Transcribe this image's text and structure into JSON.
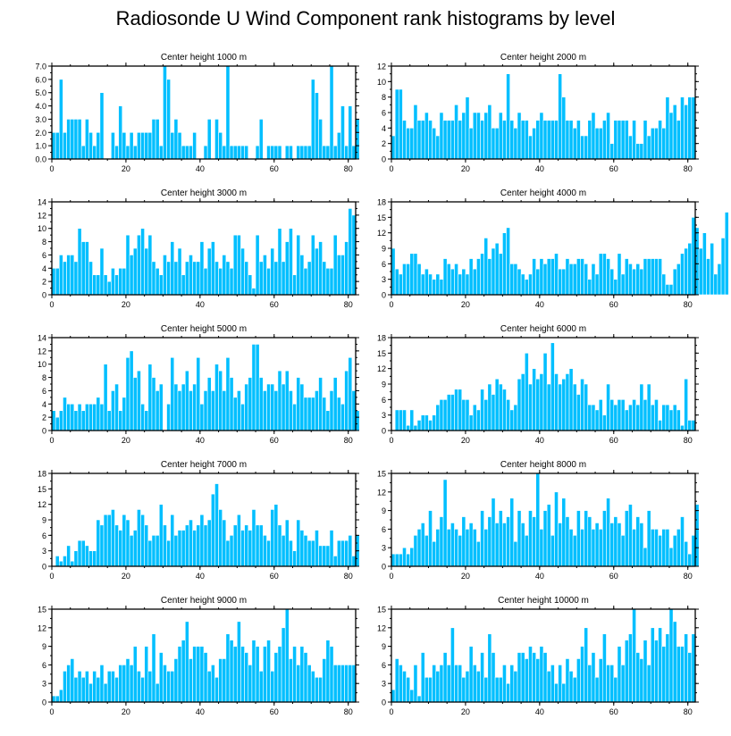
{
  "title": "Radiosonde U Wind Component rank histograms by level",
  "colors": {
    "bar": "#00bfff",
    "bar_edge": "#ffffff",
    "frame": "#000000"
  },
  "chart_data": [
    {
      "type": "bar",
      "title": "Center height 1000 m",
      "xlim": [
        0,
        82
      ],
      "ylim": [
        0,
        7
      ],
      "yticks": [
        0,
        1,
        2,
        3,
        4,
        5,
        6,
        7
      ],
      "ytick_format": 1,
      "xticks": [
        0,
        20,
        40,
        60,
        80
      ],
      "values": [
        2,
        2,
        6,
        2,
        3,
        3,
        3,
        3,
        1,
        3,
        2,
        1,
        2,
        5,
        0,
        0,
        2,
        1,
        4,
        2,
        1,
        2,
        1,
        2,
        2,
        2,
        2,
        3,
        3,
        1,
        7,
        6,
        2,
        3,
        2,
        1,
        1,
        1,
        2,
        0,
        0,
        1,
        3,
        0,
        3,
        2,
        1,
        7,
        1,
        1,
        1,
        1,
        1,
        0,
        0,
        1,
        3,
        0,
        1,
        1,
        1,
        1,
        0,
        1,
        1,
        0,
        1,
        1,
        1,
        1,
        6,
        5,
        3,
        1,
        1,
        7,
        1,
        2,
        4,
        1,
        4,
        1,
        3
      ]
    },
    {
      "type": "bar",
      "title": "Center height 2000 m",
      "xlim": [
        0,
        82
      ],
      "ylim": [
        0,
        12
      ],
      "yticks": [
        0,
        2,
        4,
        6,
        8,
        10,
        12
      ],
      "ytick_format": 0,
      "xticks": [
        0,
        20,
        40,
        60,
        80
      ],
      "values": [
        3,
        9,
        9,
        5,
        4,
        4,
        7,
        5,
        5,
        6,
        5,
        4,
        3,
        6,
        5,
        5,
        5,
        7,
        5,
        6,
        8,
        4,
        6,
        6,
        5,
        6,
        7,
        4,
        4,
        6,
        5,
        11,
        5,
        4,
        6,
        5,
        5,
        3,
        4,
        5,
        6,
        5,
        5,
        5,
        5,
        11,
        8,
        5,
        5,
        4,
        5,
        3,
        3,
        5,
        6,
        4,
        4,
        5,
        6,
        2,
        5,
        5,
        5,
        5,
        3,
        5,
        2,
        2,
        5,
        3,
        4,
        4,
        5,
        4,
        8,
        6,
        7,
        5,
        8,
        7,
        8,
        8
      ]
    },
    {
      "type": "bar",
      "title": "Center height 3000 m",
      "xlim": [
        0,
        82
      ],
      "ylim": [
        0,
        14
      ],
      "yticks": [
        0,
        2,
        4,
        6,
        8,
        10,
        12,
        14
      ],
      "ytick_format": 0,
      "xticks": [
        0,
        20,
        40,
        60,
        80
      ],
      "values": [
        4,
        4,
        6,
        5,
        6,
        6,
        5,
        10,
        8,
        8,
        5,
        3,
        3,
        7,
        3,
        2,
        4,
        3,
        4,
        4,
        9,
        6,
        7,
        9,
        10,
        7,
        9,
        5,
        4,
        3,
        6,
        5,
        8,
        5,
        7,
        3,
        5,
        6,
        5,
        5,
        8,
        4,
        7,
        8,
        5,
        4,
        6,
        5,
        4,
        9,
        9,
        7,
        5,
        3,
        1,
        9,
        5,
        6,
        4,
        7,
        5,
        10,
        5,
        8,
        10,
        3,
        9,
        6,
        4,
        5,
        9,
        7,
        8,
        5,
        4,
        4,
        9,
        6,
        6,
        8,
        13,
        12
      ]
    },
    {
      "type": "bar",
      "title": "Center height 4000 m",
      "xlim": [
        0,
        82
      ],
      "ylim": [
        0,
        18
      ],
      "yticks": [
        0,
        3,
        6,
        9,
        12,
        15,
        18
      ],
      "ytick_format": 0,
      "xticks": [
        0,
        20,
        40,
        60,
        80
      ],
      "values": [
        9,
        5,
        4,
        6,
        6,
        8,
        8,
        6,
        4,
        5,
        4,
        3,
        4,
        3,
        7,
        6,
        5,
        6,
        4,
        5,
        4,
        7,
        5,
        7,
        8,
        11,
        7,
        9,
        10,
        8,
        12,
        13,
        6,
        6,
        5,
        4,
        3,
        4,
        7,
        5,
        7,
        6,
        7,
        7,
        8,
        5,
        5,
        7,
        6,
        6,
        7,
        7,
        6,
        3,
        6,
        4,
        8,
        8,
        7,
        5,
        3,
        8,
        4,
        7,
        6,
        5,
        6,
        5,
        7,
        7,
        7,
        7,
        7,
        4,
        2,
        2,
        5,
        6,
        8,
        9,
        10,
        15,
        13,
        9,
        12,
        7,
        10,
        4,
        6,
        11,
        16
      ]
    },
    {
      "type": "bar",
      "title": "Center height 5000 m",
      "xlim": [
        0,
        82
      ],
      "ylim": [
        0,
        14
      ],
      "yticks": [
        0,
        2,
        4,
        6,
        8,
        10,
        12,
        14
      ],
      "ytick_format": 0,
      "xticks": [
        0,
        20,
        40,
        60,
        80
      ],
      "values": [
        3,
        2,
        3,
        5,
        4,
        4,
        3,
        4,
        3,
        4,
        4,
        4,
        5,
        4,
        10,
        3,
        6,
        7,
        3,
        5,
        11,
        12,
        8,
        9,
        4,
        3,
        10,
        8,
        6,
        7,
        0,
        4,
        11,
        7,
        6,
        7,
        9,
        6,
        7,
        11,
        4,
        6,
        8,
        6,
        10,
        9,
        6,
        11,
        8,
        5,
        6,
        4,
        7,
        8,
        13,
        13,
        8,
        6,
        7,
        7,
        6,
        9,
        7,
        9,
        6,
        4,
        8,
        7,
        5,
        5,
        5,
        6,
        8,
        5,
        3,
        6,
        8,
        5,
        4,
        9,
        11,
        6,
        3
      ]
    },
    {
      "type": "bar",
      "title": "Center height 6000 m",
      "xlim": [
        0,
        82
      ],
      "ylim": [
        0,
        18
      ],
      "yticks": [
        0,
        3,
        6,
        9,
        12,
        15,
        18
      ],
      "ytick_format": 0,
      "xticks": [
        0,
        20,
        40,
        60,
        80
      ],
      "values": [
        0,
        4,
        4,
        4,
        1,
        4,
        1,
        2,
        3,
        3,
        2,
        3,
        5,
        6,
        6,
        7,
        7,
        8,
        8,
        6,
        6,
        3,
        5,
        4,
        8,
        6,
        9,
        7,
        10,
        9,
        8,
        6,
        4,
        5,
        10,
        11,
        15,
        9,
        12,
        10,
        11,
        15,
        9,
        17,
        11,
        9,
        10,
        11,
        12,
        9,
        7,
        10,
        9,
        5,
        5,
        4,
        6,
        3,
        9,
        6,
        5,
        6,
        6,
        4,
        5,
        6,
        5,
        9,
        6,
        9,
        5,
        6,
        2,
        5,
        5,
        4,
        5,
        4,
        1,
        10,
        2,
        2
      ]
    },
    {
      "type": "bar",
      "title": "Center height 7000 m",
      "xlim": [
        0,
        82
      ],
      "ylim": [
        0,
        18
      ],
      "yticks": [
        0,
        3,
        6,
        9,
        12,
        15,
        18
      ],
      "ytick_format": 0,
      "xticks": [
        0,
        20,
        40,
        60,
        80
      ],
      "values": [
        0,
        2,
        1,
        2,
        4,
        1,
        3,
        5,
        5,
        4,
        3,
        3,
        9,
        8,
        10,
        10,
        11,
        8,
        7,
        10,
        9,
        6,
        7,
        11,
        10,
        8,
        5,
        6,
        6,
        12,
        8,
        5,
        10,
        6,
        7,
        7,
        8,
        9,
        7,
        8,
        10,
        8,
        9,
        14,
        16,
        11,
        9,
        5,
        6,
        8,
        10,
        7,
        8,
        7,
        11,
        8,
        8,
        6,
        5,
        11,
        12,
        8,
        6,
        9,
        5,
        3,
        9,
        7,
        6,
        5,
        5,
        7,
        4,
        4,
        4,
        7,
        2,
        5,
        5,
        5,
        6,
        2,
        6
      ]
    },
    {
      "type": "bar",
      "title": "Center height 8000 m",
      "xlim": [
        0,
        82
      ],
      "ylim": [
        0,
        15
      ],
      "yticks": [
        0,
        3,
        6,
        9,
        12,
        15
      ],
      "ytick_format": 0,
      "xticks": [
        0,
        20,
        40,
        60,
        80
      ],
      "values": [
        2,
        2,
        2,
        3,
        2,
        3,
        5,
        6,
        7,
        5,
        9,
        4,
        6,
        8,
        14,
        6,
        7,
        6,
        5,
        8,
        6,
        7,
        6,
        4,
        9,
        6,
        8,
        11,
        7,
        9,
        7,
        8,
        11,
        4,
        9,
        7,
        5,
        9,
        8,
        15,
        6,
        9,
        10,
        5,
        12,
        7,
        11,
        8,
        6,
        5,
        9,
        6,
        9,
        8,
        6,
        7,
        6,
        9,
        11,
        7,
        8,
        7,
        5,
        9,
        10,
        6,
        8,
        7,
        3,
        9,
        6,
        6,
        5,
        6,
        6,
        3,
        5,
        6,
        8,
        4,
        2,
        5,
        10
      ]
    },
    {
      "type": "bar",
      "title": "Center height 9000 m",
      "xlim": [
        0,
        82
      ],
      "ylim": [
        0,
        15
      ],
      "yticks": [
        0,
        3,
        6,
        9,
        12,
        15
      ],
      "ytick_format": 0,
      "xticks": [
        0,
        20,
        40,
        60,
        80
      ],
      "values": [
        1,
        1,
        2,
        5,
        6,
        7,
        4,
        5,
        4,
        5,
        3,
        5,
        4,
        6,
        3,
        5,
        5,
        4,
        6,
        6,
        7,
        6,
        9,
        5,
        4,
        9,
        5,
        11,
        3,
        8,
        6,
        5,
        5,
        7,
        9,
        10,
        13,
        7,
        9,
        9,
        9,
        8,
        5,
        6,
        4,
        7,
        7,
        11,
        10,
        9,
        13,
        9,
        8,
        6,
        10,
        9,
        5,
        9,
        10,
        5,
        8,
        9,
        12,
        15,
        7,
        9,
        6,
        9,
        8,
        6,
        5,
        4,
        4,
        7,
        10,
        9,
        6,
        6,
        6,
        6,
        6,
        6
      ]
    },
    {
      "type": "bar",
      "title": "Center height 10000 m",
      "xlim": [
        0,
        82
      ],
      "ylim": [
        0,
        15
      ],
      "yticks": [
        0,
        3,
        6,
        9,
        12,
        15
      ],
      "ytick_format": 0,
      "xticks": [
        0,
        20,
        40,
        60,
        80
      ],
      "values": [
        2,
        7,
        6,
        5,
        4,
        2,
        6,
        1,
        8,
        4,
        4,
        6,
        5,
        6,
        8,
        6,
        12,
        6,
        6,
        4,
        5,
        9,
        6,
        5,
        8,
        4,
        11,
        8,
        4,
        4,
        6,
        3,
        6,
        5,
        8,
        8,
        7,
        9,
        8,
        7,
        9,
        8,
        5,
        6,
        3,
        6,
        3,
        7,
        5,
        4,
        7,
        9,
        12,
        6,
        8,
        4,
        7,
        11,
        6,
        6,
        4,
        9,
        6,
        10,
        11,
        15,
        8,
        7,
        10,
        6,
        12,
        10,
        12,
        9,
        11,
        15,
        13,
        9,
        9,
        11,
        8,
        11
      ]
    }
  ]
}
